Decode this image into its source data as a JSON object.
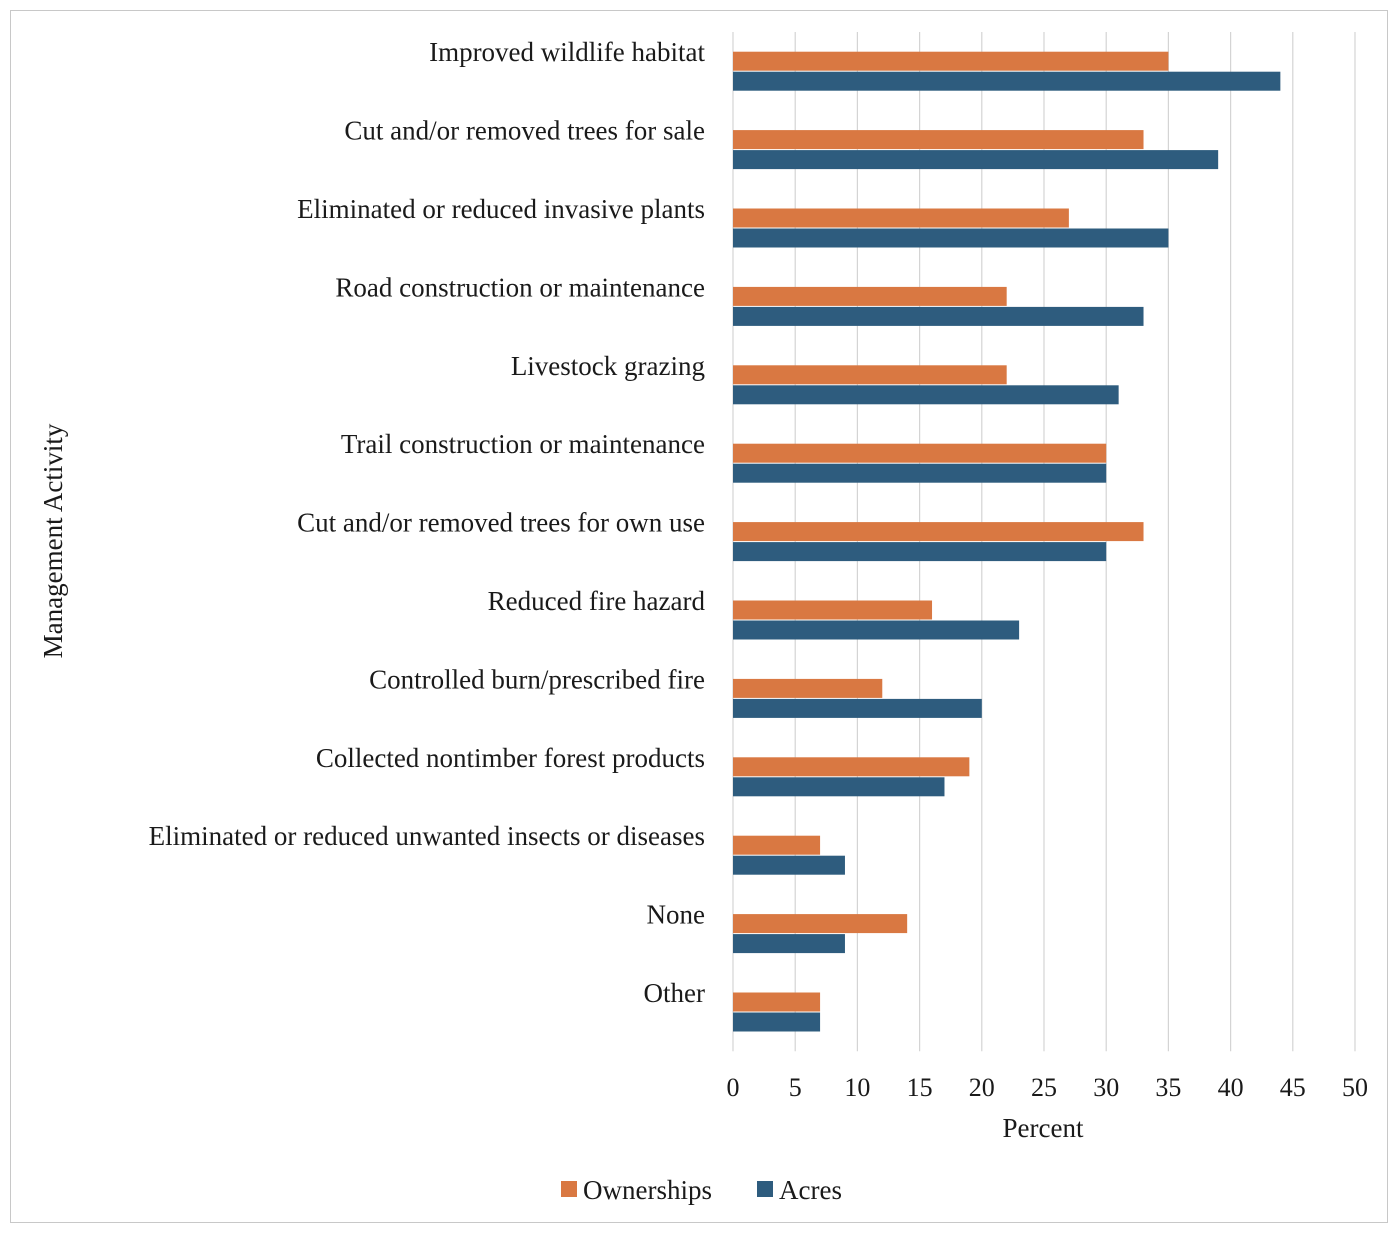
{
  "chart_data": {
    "type": "bar",
    "orientation": "horizontal",
    "categories": [
      "Improved wildlife habitat",
      "Cut and/or removed trees for sale",
      "Eliminated or reduced invasive plants",
      "Road construction or maintenance",
      "Livestock grazing",
      "Trail construction or maintenance",
      "Cut and/or removed trees for own use",
      "Reduced fire hazard",
      "Controlled burn/prescribed fire",
      "Collected nontimber forest products",
      "Eliminated or reduced unwanted insects or diseases",
      "None",
      "Other"
    ],
    "series": [
      {
        "name": "Ownerships",
        "color": "#D97842",
        "values": [
          35,
          33,
          27,
          22,
          22,
          30,
          33,
          16,
          12,
          19,
          7,
          14,
          7
        ]
      },
      {
        "name": "Acres",
        "color": "#2E5C7E",
        "values": [
          44,
          39,
          35,
          33,
          31,
          30,
          30,
          23,
          20,
          17,
          9,
          9,
          7
        ]
      }
    ],
    "xlabel": "Percent",
    "ylabel": "Management Activity",
    "xlim": [
      0,
      50
    ],
    "xticks": [
      "0",
      "5",
      "10",
      "15",
      "20",
      "25",
      "30",
      "35",
      "40",
      "45",
      "50"
    ],
    "grid": "vertical",
    "legend": "bottom"
  }
}
